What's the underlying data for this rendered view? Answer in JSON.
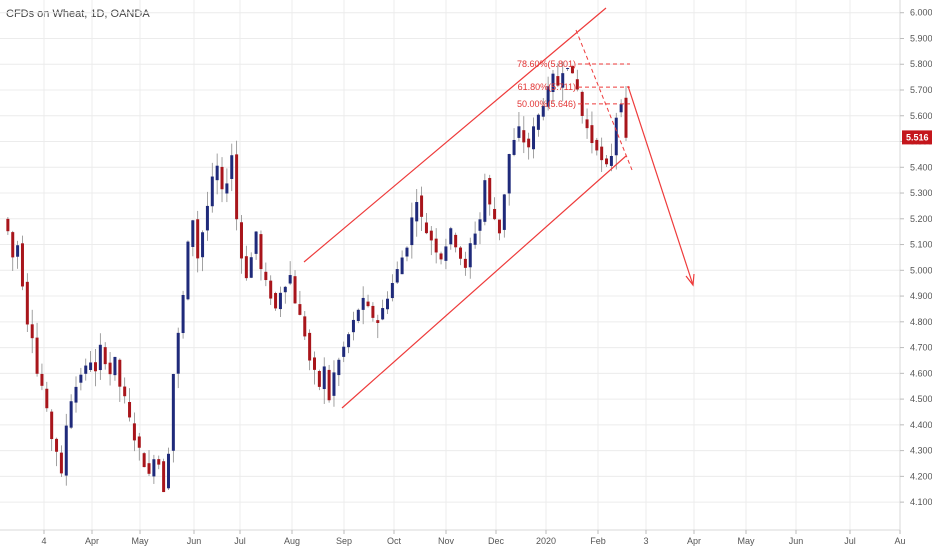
{
  "chart_data": {
    "type": "candlestick",
    "title": "CFDs on Wheat, 1D, OANDA",
    "y_ticks": [
      "6.000",
      "5.900",
      "5.800",
      "5.700",
      "5.600",
      "5.500",
      "5.400",
      "5.300",
      "5.200",
      "5.100",
      "5.000",
      "4.900",
      "4.800",
      "4.700",
      "4.600",
      "4.500",
      "4.400",
      "4.300",
      "4.200",
      "4.100"
    ],
    "ylim": [
      4.05,
      6.03
    ],
    "x_ticks": [
      "4",
      "Apr",
      "May",
      "Jun",
      "Jul",
      "Aug",
      "Sep",
      "Oct",
      "Nov",
      "Dec",
      "2020",
      "Feb",
      "3",
      "Apr",
      "May",
      "Jun",
      "Jul",
      "Au"
    ],
    "current_price": "5.516",
    "fib_levels": [
      {
        "label": "78.60%(5.801)",
        "value": 5.801
      },
      {
        "label": "61.80%(5.711)",
        "value": 5.711
      },
      {
        "label": "50.00%(5.646)",
        "value": 5.646
      }
    ],
    "price_path": [
      5.2,
      5.15,
      5.05,
      5.1,
      4.95,
      4.8,
      4.75,
      4.6,
      4.55,
      4.45,
      4.35,
      4.3,
      4.2,
      4.4,
      4.5,
      4.55,
      4.6,
      4.62,
      4.65,
      4.6,
      4.7,
      4.65,
      4.6,
      4.65,
      4.55,
      4.5,
      4.42,
      4.35,
      4.3,
      4.25,
      4.2,
      4.28,
      4.25,
      4.15,
      4.3,
      4.6,
      4.75,
      4.9,
      5.1,
      5.2,
      5.05,
      5.15,
      5.25,
      5.35,
      5.4,
      5.3,
      5.35,
      5.45,
      5.2,
      5.05,
      4.98,
      5.05,
      5.15,
      5.0,
      4.95,
      4.9,
      4.85,
      4.92,
      4.95,
      4.98,
      4.88,
      4.82,
      4.75,
      4.65,
      4.6,
      4.55,
      4.62,
      4.5,
      4.6,
      4.65,
      4.7,
      4.75,
      4.8,
      4.85,
      4.88,
      4.85,
      4.82,
      4.8,
      4.85,
      4.9,
      4.95,
      5.0,
      5.05,
      5.1,
      5.2,
      5.28,
      5.2,
      5.15,
      5.12,
      5.08,
      5.05,
      5.1,
      5.15,
      5.1,
      5.05,
      5.0,
      5.1,
      5.15,
      5.2,
      5.35,
      5.25,
      5.2,
      5.15,
      5.3,
      5.45,
      5.5,
      5.55,
      5.5,
      5.48,
      5.55,
      5.6,
      5.65,
      5.7,
      5.75,
      5.72,
      5.78,
      5.8,
      5.75,
      5.7,
      5.6,
      5.55,
      5.5,
      5.48,
      5.42,
      5.4,
      5.45,
      5.6,
      5.66,
      5.5
    ]
  },
  "colors": {
    "up": "#1f2a7a",
    "down": "#a8151b",
    "drawing": "#ee3b3b",
    "grid": "#ececec",
    "axis_text": "#555555",
    "price_tag": "#c4161c"
  }
}
